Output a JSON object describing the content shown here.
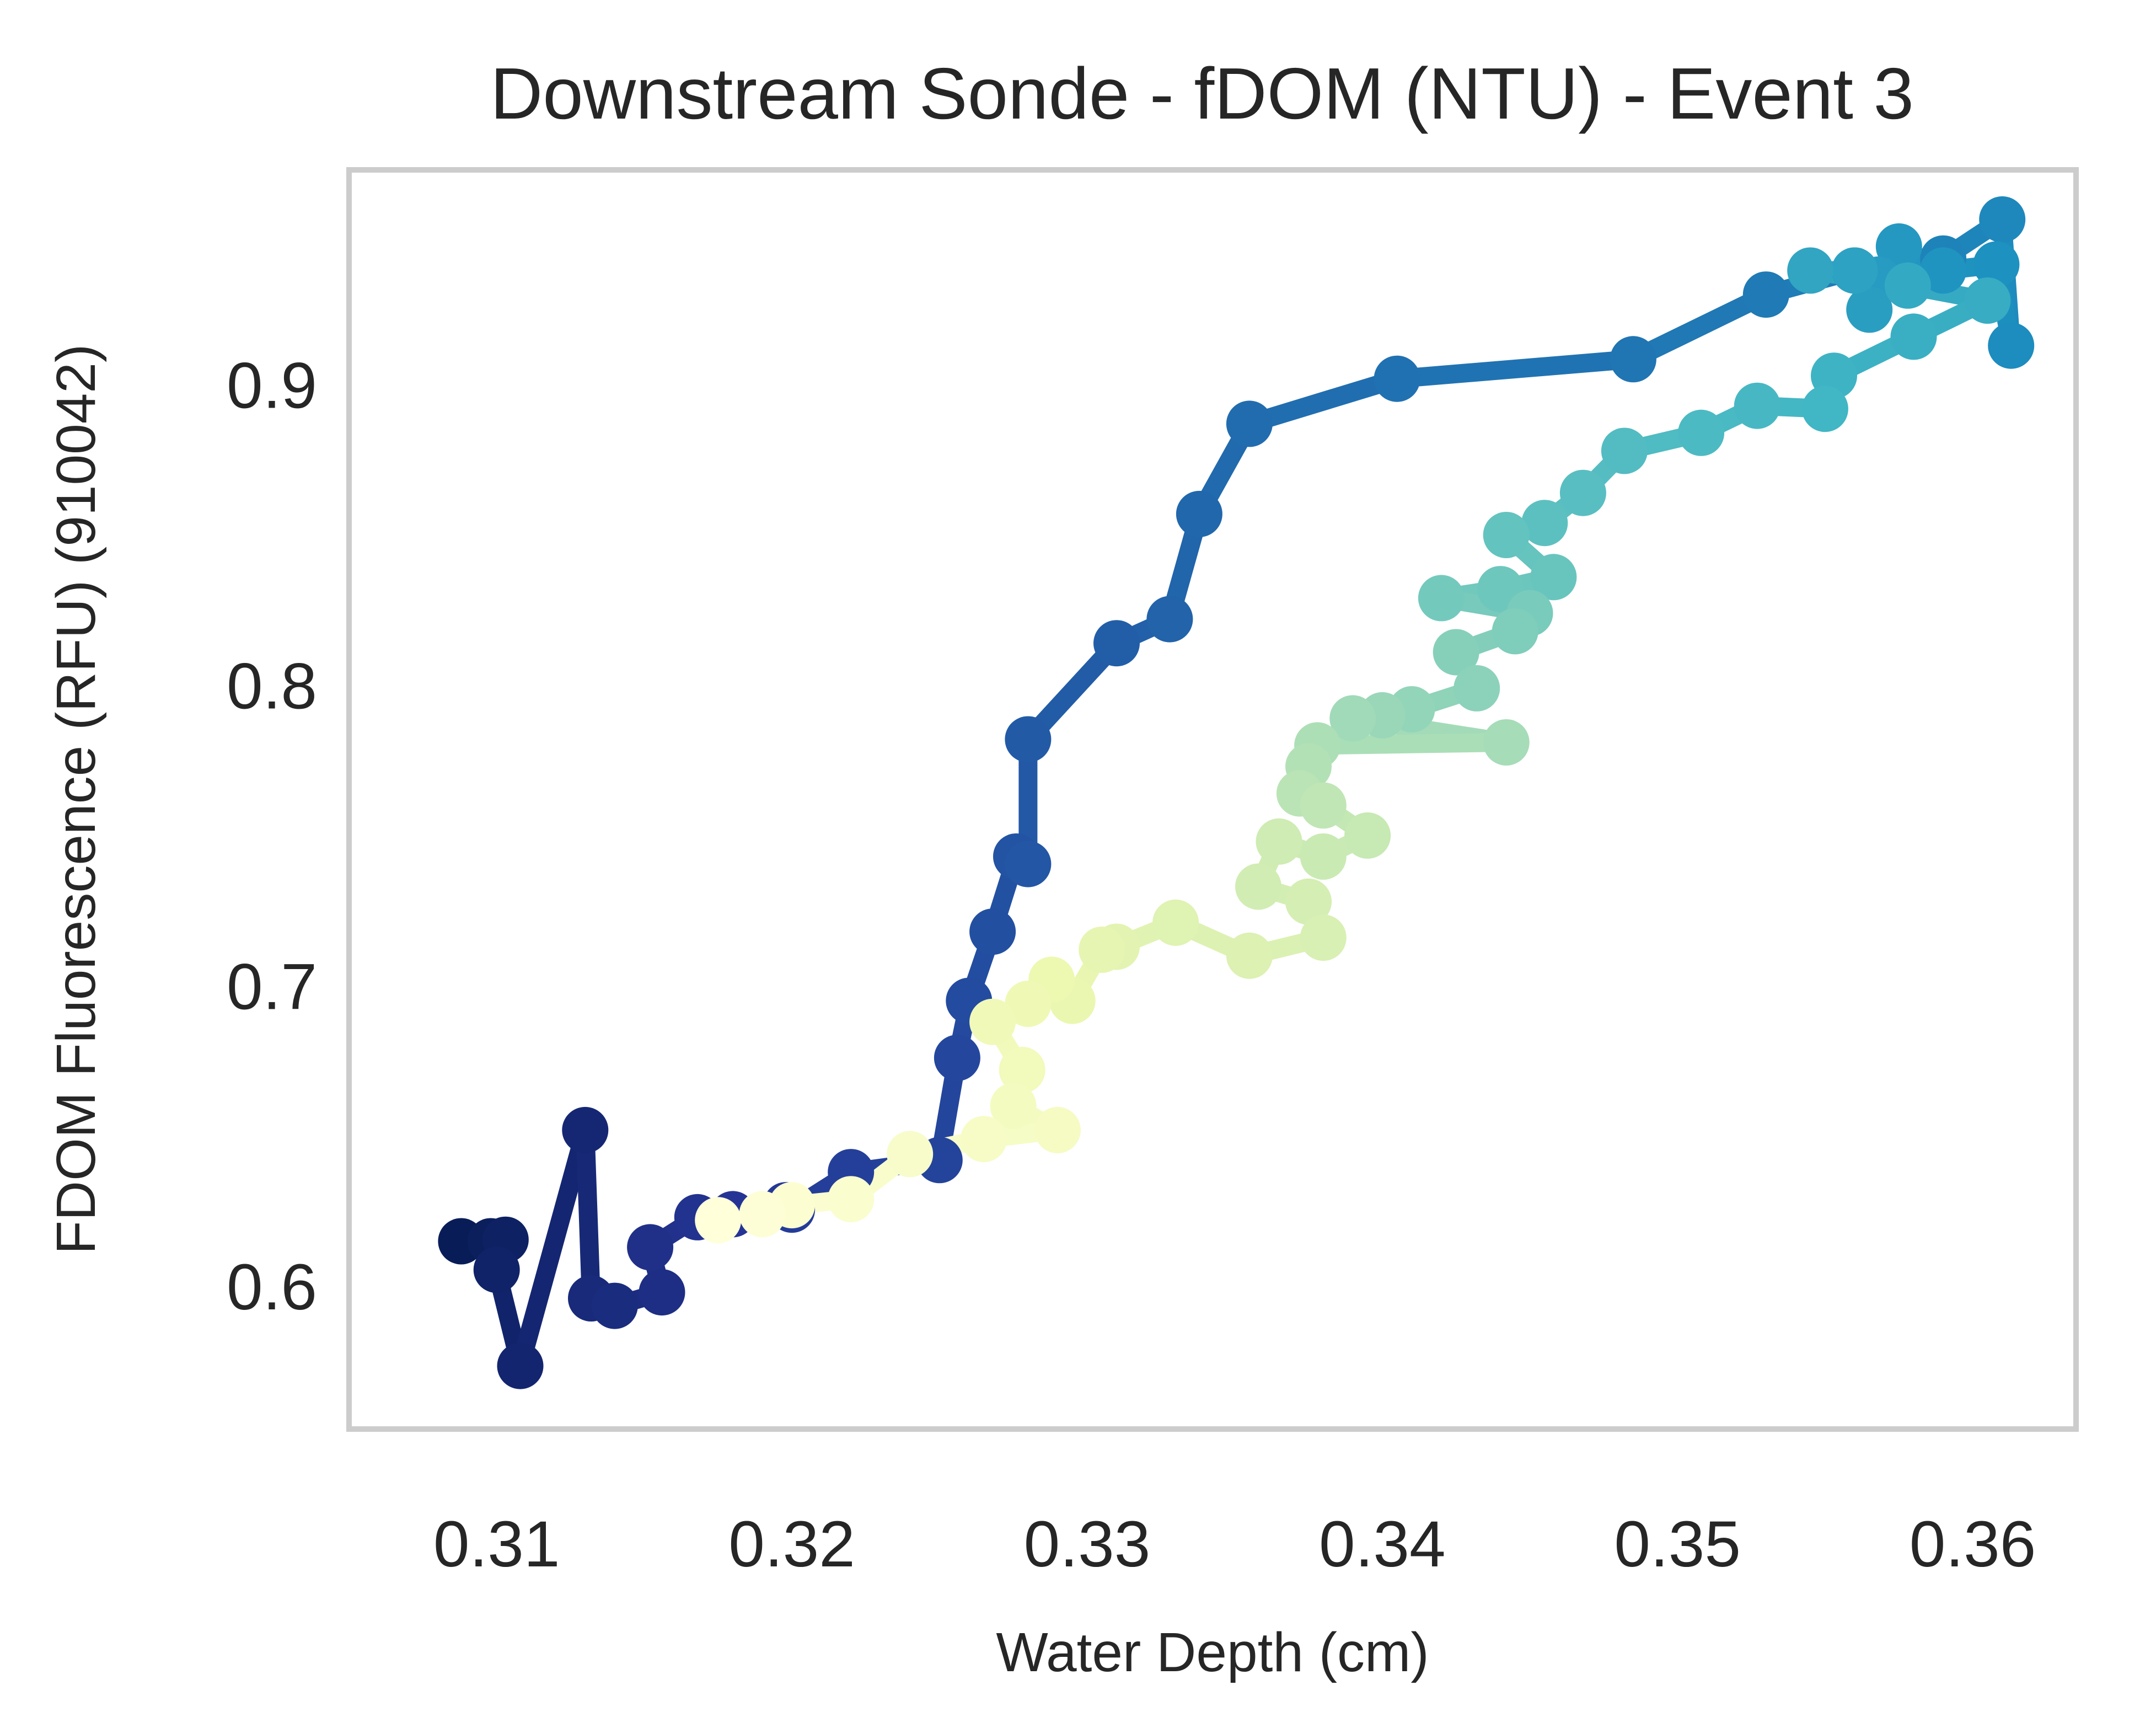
{
  "chart_data": {
    "type": "line",
    "title": "Downstream Sonde - fDOM (NTU) - Event 3",
    "xlabel": "Water Depth (cm)",
    "ylabel": "FDOM Fluorescence (RFU) (910042)",
    "xlim": [
      0.305,
      0.3635
    ],
    "ylim": [
      0.5525,
      0.9715
    ],
    "xticks": [
      "0.31",
      "0.32",
      "0.33",
      "0.34",
      "0.35",
      "0.36"
    ],
    "yticks": [
      "0.6",
      "0.7",
      "0.8",
      "0.9"
    ],
    "grid": false,
    "legend": "none",
    "colormap": "YlGnBu_r",
    "colormap_colors": [
      "#081d58",
      "#253494",
      "#225ea8",
      "#1d91c0",
      "#41b6c4",
      "#7fcdbb",
      "#c7e9b4",
      "#edf8b1",
      "#ffffd9"
    ],
    "frame_color": "#cccccc",
    "series": [
      {
        "points": [
          [
            0.3088,
            0.615
          ],
          [
            0.3098,
            0.615
          ],
          [
            0.3103,
            0.6155
          ],
          [
            0.31,
            0.6055
          ],
          [
            0.3108,
            0.5735
          ],
          [
            0.313,
            0.652
          ],
          [
            0.3132,
            0.596
          ],
          [
            0.314,
            0.5935
          ],
          [
            0.3156,
            0.598
          ],
          [
            0.3152,
            0.613
          ],
          [
            0.3168,
            0.623
          ],
          [
            0.318,
            0.624
          ],
          [
            0.3198,
            0.627
          ],
          [
            0.32,
            0.6255
          ],
          [
            0.322,
            0.638
          ],
          [
            0.325,
            0.642
          ],
          [
            0.3256,
            0.676
          ],
          [
            0.326,
            0.695
          ],
          [
            0.3268,
            0.718
          ],
          [
            0.3276,
            0.743
          ],
          [
            0.328,
            0.7405
          ],
          [
            0.328,
            0.782
          ],
          [
            0.331,
            0.814
          ],
          [
            0.3328,
            0.822
          ],
          [
            0.3338,
            0.857
          ],
          [
            0.3355,
            0.887
          ],
          [
            0.3405,
            0.902
          ],
          [
            0.3485,
            0.9085
          ],
          [
            0.353,
            0.93
          ],
          [
            0.356,
            0.938
          ],
          [
            0.359,
            0.942
          ],
          [
            0.361,
            0.955
          ],
          [
            0.3613,
            0.913
          ],
          [
            0.3608,
            0.94
          ],
          [
            0.359,
            0.938
          ],
          [
            0.3575,
            0.946
          ],
          [
            0.3568,
            0.935
          ],
          [
            0.3565,
            0.925
          ],
          [
            0.356,
            0.938
          ],
          [
            0.3545,
            0.938
          ],
          [
            0.3578,
            0.933
          ],
          [
            0.3605,
            0.928
          ],
          [
            0.358,
            0.916
          ],
          [
            0.3553,
            0.903
          ],
          [
            0.355,
            0.892
          ],
          [
            0.3527,
            0.893
          ],
          [
            0.3508,
            0.884
          ],
          [
            0.3482,
            0.878
          ],
          [
            0.3468,
            0.864
          ],
          [
            0.3455,
            0.854
          ],
          [
            0.3442,
            0.85
          ],
          [
            0.3458,
            0.836
          ],
          [
            0.344,
            0.832
          ],
          [
            0.342,
            0.829
          ],
          [
            0.345,
            0.824
          ],
          [
            0.3445,
            0.818
          ],
          [
            0.3425,
            0.811
          ],
          [
            0.3432,
            0.799
          ],
          [
            0.341,
            0.792
          ],
          [
            0.34,
            0.79
          ],
          [
            0.339,
            0.789
          ],
          [
            0.3442,
            0.781
          ],
          [
            0.3378,
            0.78
          ],
          [
            0.3375,
            0.773
          ],
          [
            0.3372,
            0.764
          ],
          [
            0.338,
            0.76
          ],
          [
            0.3395,
            0.75
          ],
          [
            0.338,
            0.743
          ],
          [
            0.3365,
            0.748
          ],
          [
            0.3358,
            0.733
          ],
          [
            0.3375,
            0.728
          ],
          [
            0.338,
            0.716
          ],
          [
            0.3355,
            0.71
          ],
          [
            0.333,
            0.721
          ],
          [
            0.331,
            0.713
          ],
          [
            0.3305,
            0.712
          ],
          [
            0.3295,
            0.695
          ],
          [
            0.3288,
            0.702
          ],
          [
            0.328,
            0.694
          ],
          [
            0.3268,
            0.688
          ],
          [
            0.3278,
            0.672
          ],
          [
            0.3275,
            0.66
          ],
          [
            0.329,
            0.652
          ],
          [
            0.3265,
            0.649
          ],
          [
            0.324,
            0.644
          ],
          [
            0.322,
            0.629
          ],
          [
            0.32,
            0.627
          ],
          [
            0.319,
            0.624
          ],
          [
            0.3175,
            0.622
          ]
        ]
      }
    ]
  }
}
